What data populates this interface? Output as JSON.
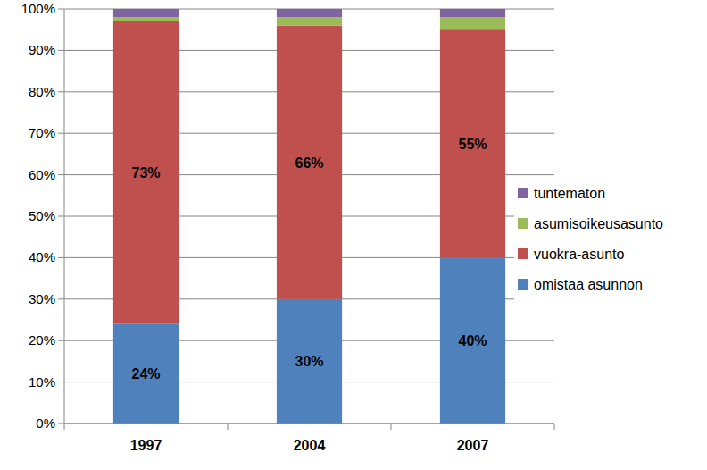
{
  "chart_data": {
    "type": "bar",
    "stacked": true,
    "grid": true,
    "legend": "right",
    "categories": [
      "1997",
      "2004",
      "2007"
    ],
    "ylim": [
      0,
      100
    ],
    "yticks": [
      {
        "value": 0,
        "label": "0%"
      },
      {
        "value": 10,
        "label": "10%"
      },
      {
        "value": 20,
        "label": "20%"
      },
      {
        "value": 30,
        "label": "30%"
      },
      {
        "value": 40,
        "label": "40%"
      },
      {
        "value": 50,
        "label": "50%"
      },
      {
        "value": 60,
        "label": "60%"
      },
      {
        "value": 70,
        "label": "70%"
      },
      {
        "value": 80,
        "label": "80%"
      },
      {
        "value": 90,
        "label": "90%"
      },
      {
        "value": 100,
        "label": "100%"
      }
    ],
    "series": [
      {
        "name": "omistaa asunnon",
        "color": "#4f81bd",
        "values": [
          24,
          30,
          40
        ],
        "data_labels": true,
        "value_labels": [
          "24%",
          "30%",
          "40%"
        ]
      },
      {
        "name": "vuokra-asunto",
        "color": "#c0504d",
        "values": [
          73,
          66,
          55
        ],
        "data_labels": true,
        "value_labels": [
          "73%",
          "66%",
          "55%"
        ]
      },
      {
        "name": "asumisoikeusasunto",
        "color": "#9bbb59",
        "values": [
          1,
          2,
          3
        ]
      },
      {
        "name": "tuntematon",
        "color": "#8064a2",
        "values": [
          2,
          2,
          2
        ]
      }
    ]
  }
}
